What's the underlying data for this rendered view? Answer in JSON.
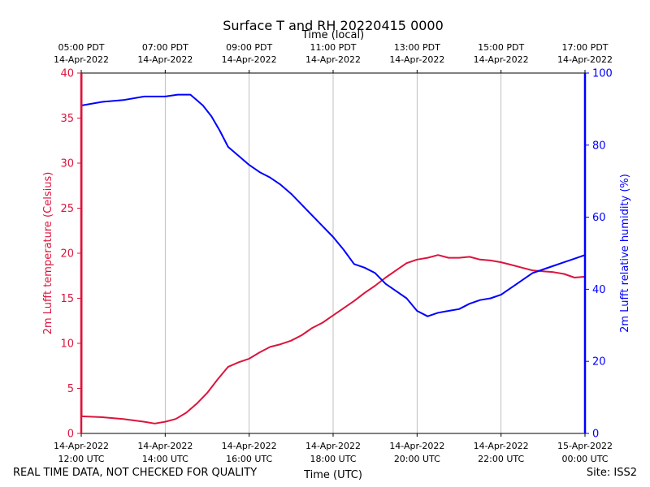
{
  "chart_data": {
    "type": "line",
    "title": "Surface T and RH 20220415 0000",
    "top_axis_label": "Time (local)",
    "xlabel": "Time (UTC)",
    "ylabel_left": "2m Lufft temperature (Celsius)",
    "ylabel_right": "2m Lufft relative humidity (%)",
    "ylim_left": [
      0,
      40
    ],
    "ylim_right": [
      0,
      100
    ],
    "yticks_left": [
      "0",
      "5",
      "10",
      "15",
      "20",
      "25",
      "30",
      "35",
      "40"
    ],
    "yticks_right": [
      "0",
      "20",
      "40",
      "60",
      "80",
      "100"
    ],
    "xlim_hours": [
      12,
      24
    ],
    "bottom_ticks": [
      {
        "hour": 12,
        "date": "14-Apr-2022",
        "time": "12:00 UTC"
      },
      {
        "hour": 14,
        "date": "14-Apr-2022",
        "time": "14:00 UTC"
      },
      {
        "hour": 16,
        "date": "14-Apr-2022",
        "time": "16:00 UTC"
      },
      {
        "hour": 18,
        "date": "14-Apr-2022",
        "time": "18:00 UTC"
      },
      {
        "hour": 20,
        "date": "14-Apr-2022",
        "time": "20:00 UTC"
      },
      {
        "hour": 22,
        "date": "14-Apr-2022",
        "time": "22:00 UTC"
      },
      {
        "hour": 24,
        "date": "15-Apr-2022",
        "time": "00:00 UTC"
      }
    ],
    "top_ticks": [
      {
        "hour": 12,
        "time": "05:00 PDT",
        "date": "14-Apr-2022"
      },
      {
        "hour": 14,
        "time": "07:00 PDT",
        "date": "14-Apr-2022"
      },
      {
        "hour": 16,
        "time": "09:00 PDT",
        "date": "14-Apr-2022"
      },
      {
        "hour": 18,
        "time": "11:00 PDT",
        "date": "14-Apr-2022"
      },
      {
        "hour": 20,
        "time": "13:00 PDT",
        "date": "14-Apr-2022"
      },
      {
        "hour": 22,
        "time": "15:00 PDT",
        "date": "14-Apr-2022"
      },
      {
        "hour": 24,
        "time": "17:00 PDT",
        "date": "14-Apr-2022"
      }
    ],
    "grid": "vertical",
    "series": [
      {
        "name": "2m Lufft temperature",
        "axis": "left",
        "color": "#dc143c",
        "x": [
          12.0,
          12.5,
          13.0,
          13.5,
          13.75,
          14.0,
          14.25,
          14.5,
          14.75,
          15.0,
          15.25,
          15.5,
          15.75,
          16.0,
          16.25,
          16.5,
          16.75,
          17.0,
          17.25,
          17.5,
          17.75,
          18.0,
          18.25,
          18.5,
          18.75,
          19.0,
          19.25,
          19.5,
          19.75,
          20.0,
          20.25,
          20.5,
          20.75,
          21.0,
          21.25,
          21.5,
          21.75,
          22.0,
          22.25,
          22.5,
          22.75,
          23.0,
          23.25,
          23.5,
          23.75,
          24.0
        ],
        "values": [
          1.9,
          1.8,
          1.6,
          1.3,
          1.1,
          1.3,
          1.6,
          2.3,
          3.3,
          4.5,
          6.0,
          7.4,
          7.9,
          8.3,
          9.0,
          9.6,
          9.9,
          10.3,
          10.9,
          11.7,
          12.3,
          13.1,
          13.9,
          14.7,
          15.6,
          16.4,
          17.3,
          18.1,
          18.9,
          19.3,
          19.5,
          19.8,
          19.5,
          19.5,
          19.6,
          19.3,
          19.2,
          19.0,
          18.7,
          18.4,
          18.1,
          18.0,
          17.9,
          17.7,
          17.3,
          17.4
        ]
      },
      {
        "name": "2m Lufft relative humidity",
        "axis": "right",
        "color": "#0000ff",
        "x": [
          12.0,
          12.5,
          13.0,
          13.5,
          14.0,
          14.3,
          14.6,
          14.75,
          14.9,
          15.1,
          15.3,
          15.5,
          15.75,
          16.0,
          16.25,
          16.5,
          16.75,
          17.0,
          17.25,
          17.5,
          17.75,
          18.0,
          18.25,
          18.5,
          18.75,
          19.0,
          19.25,
          19.5,
          19.75,
          20.0,
          20.25,
          20.5,
          20.75,
          21.0,
          21.25,
          21.5,
          21.75,
          22.0,
          22.25,
          22.5,
          22.75,
          23.0,
          23.25,
          23.5,
          23.75,
          24.0
        ],
        "values": [
          91.0,
          92.0,
          92.5,
          93.5,
          93.5,
          94.0,
          94.0,
          92.5,
          91.0,
          88.0,
          84.0,
          79.5,
          77.0,
          74.5,
          72.5,
          71.0,
          69.0,
          66.5,
          63.5,
          60.5,
          57.5,
          54.5,
          51.0,
          47.0,
          46.0,
          44.5,
          41.5,
          39.5,
          37.5,
          34.0,
          32.5,
          33.5,
          34.0,
          34.5,
          36.0,
          37.0,
          37.5,
          38.5,
          40.5,
          42.5,
          44.5,
          45.5,
          46.5,
          47.5,
          48.5,
          49.5
        ]
      }
    ]
  },
  "footer": {
    "quality_note": "REAL TIME DATA, NOT CHECKED FOR QUALITY",
    "site": "Site: ISS2"
  }
}
